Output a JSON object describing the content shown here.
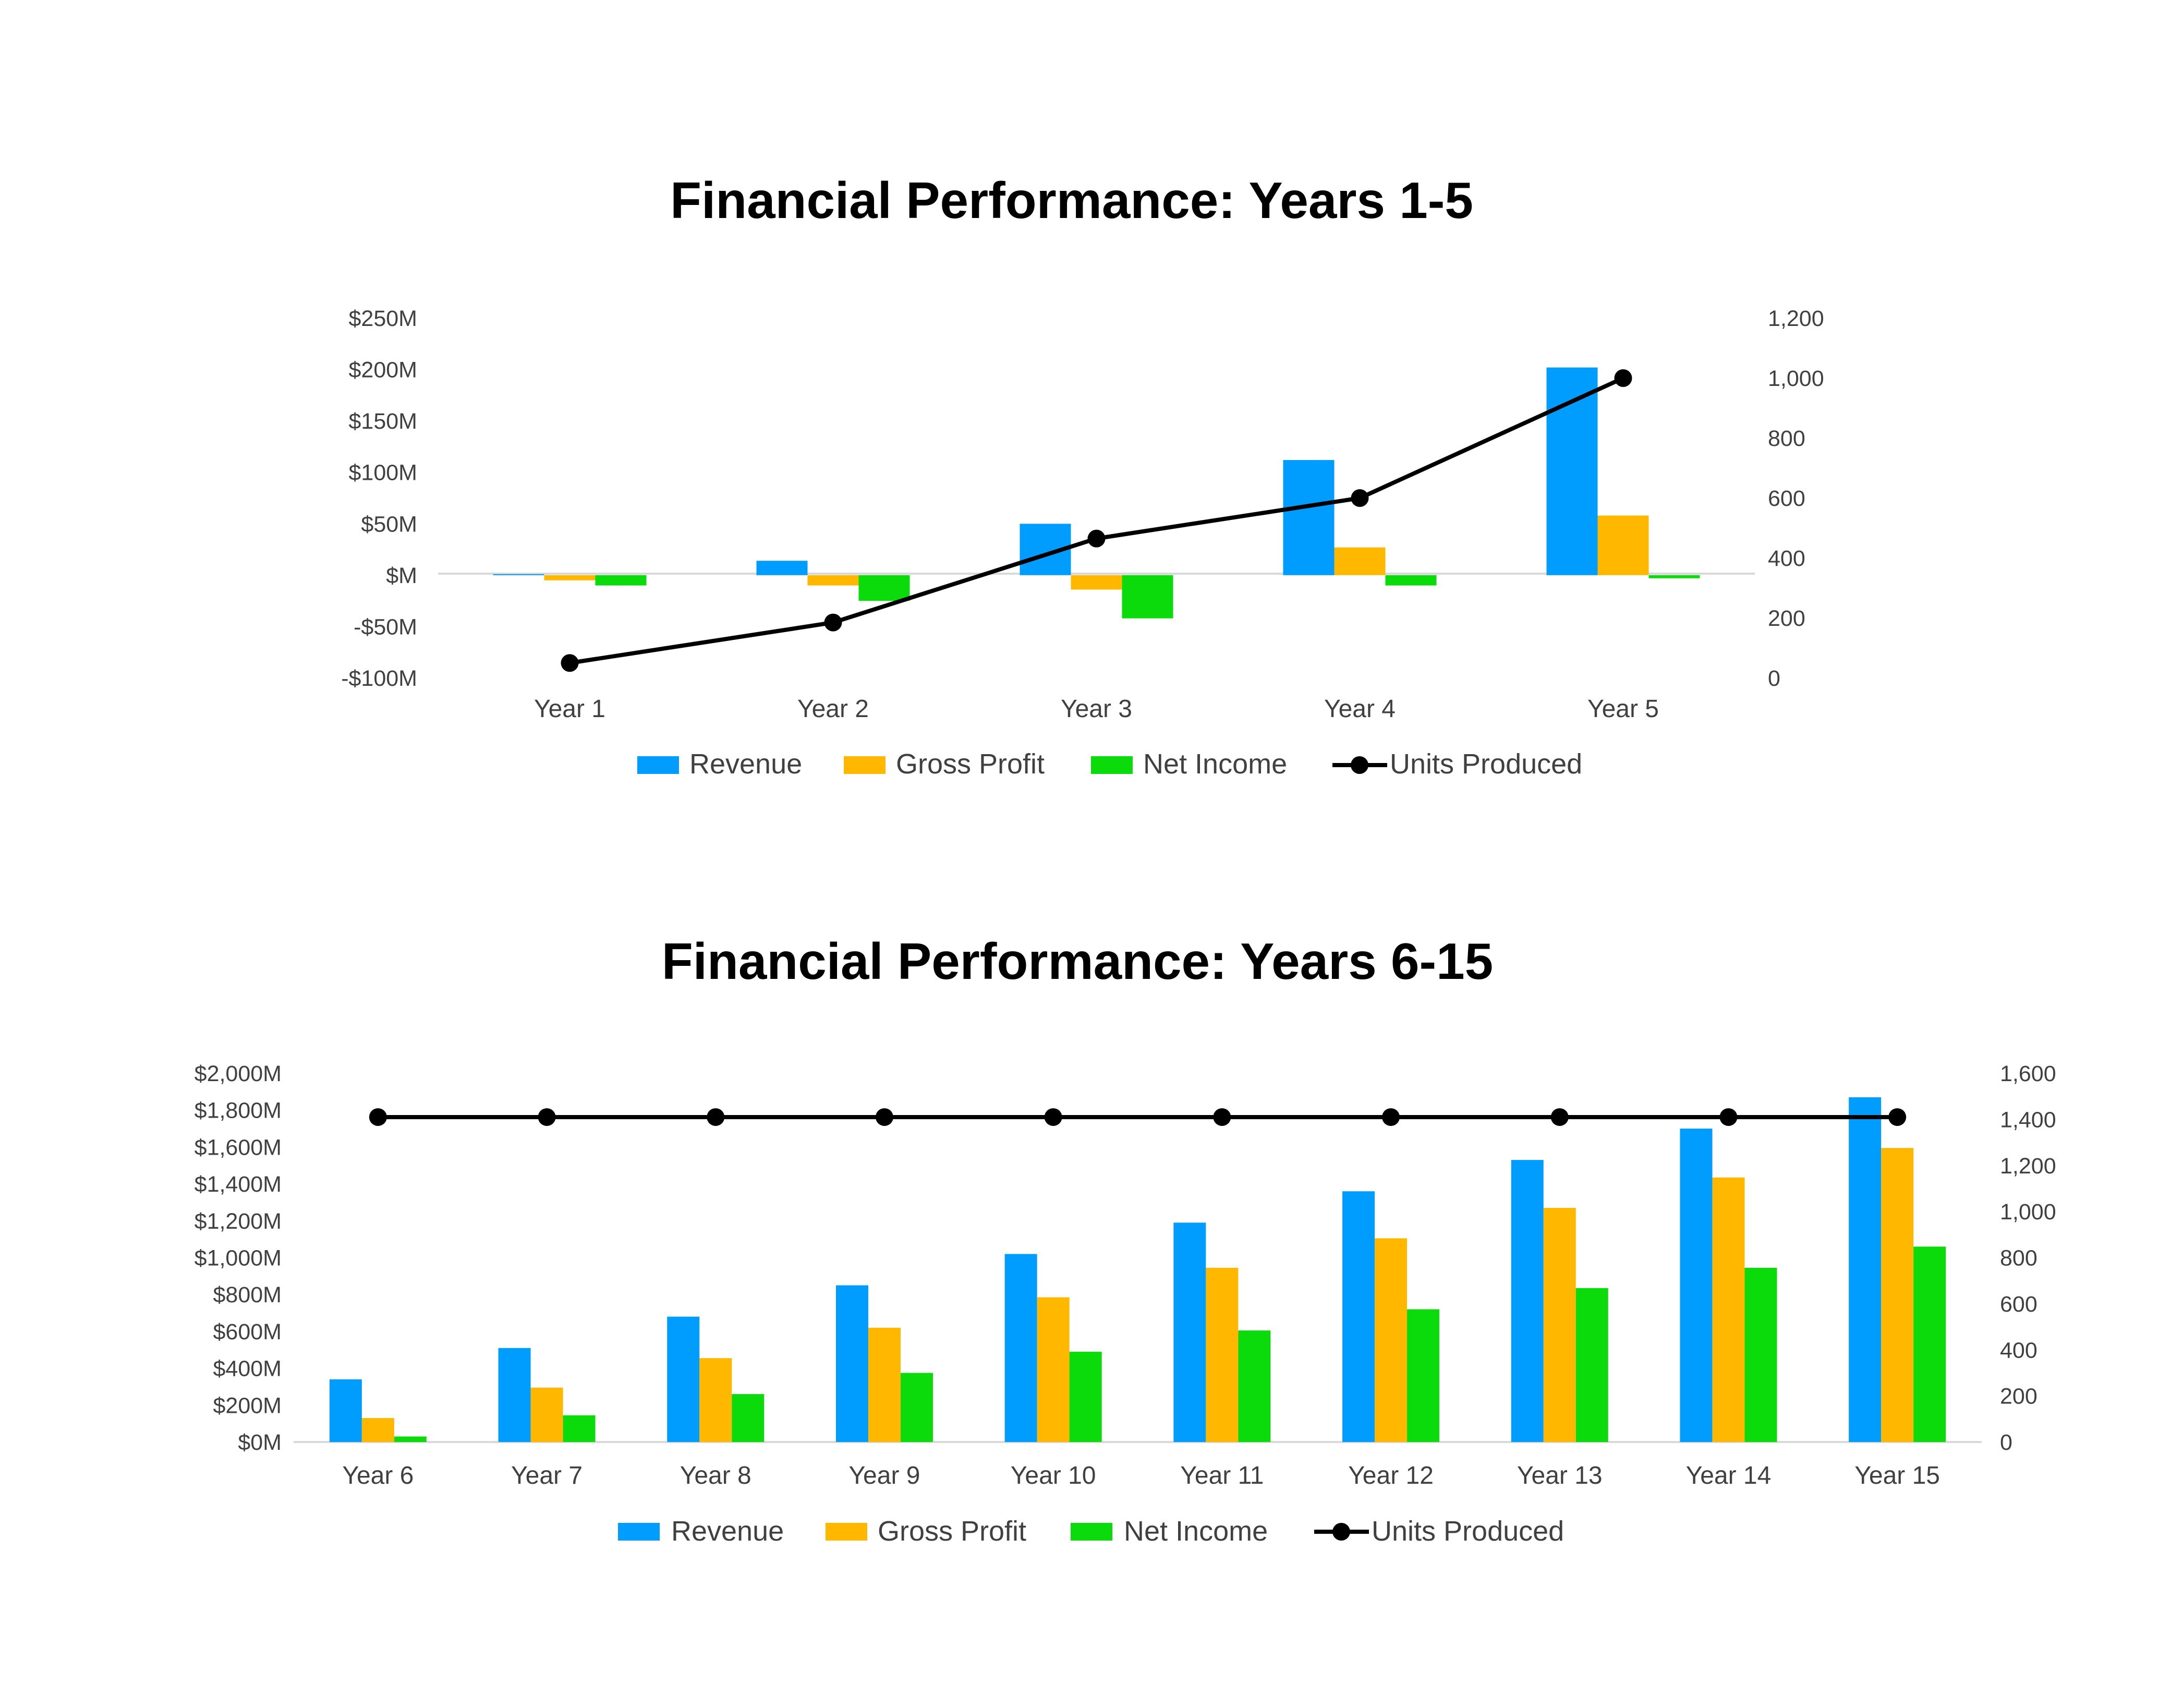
{
  "colors": {
    "revenue": "#009DFF",
    "gross_profit": "#FFB700",
    "net_income": "#0BDB0B",
    "units": "#000000",
    "axis_text": "#404040",
    "baseline": "#D9D9D9"
  },
  "chart_data": [
    {
      "type": "bar",
      "title": "Financial Performance: Years 1-5",
      "categories": [
        "Year 1",
        "Year 2",
        "Year 3",
        "Year 4",
        "Year 5"
      ],
      "series": [
        {
          "name": "Revenue",
          "type": "bar",
          "axis": "left",
          "values": [
            1,
            14,
            50,
            112,
            202
          ]
        },
        {
          "name": "Gross Profit",
          "type": "bar",
          "axis": "left",
          "values": [
            -5,
            -10,
            -14,
            27,
            58
          ]
        },
        {
          "name": "Net Income",
          "type": "bar",
          "axis": "left",
          "values": [
            -10,
            -25,
            -42,
            -10,
            -3
          ]
        },
        {
          "name": "Units Produced",
          "type": "line",
          "axis": "right",
          "values": [
            50,
            185,
            465,
            600,
            1000
          ]
        }
      ],
      "ylim": [
        -100,
        250
      ],
      "y_ticks": [
        250,
        200,
        150,
        100,
        50,
        0,
        -50,
        -100
      ],
      "y_tick_labels": [
        "$250M",
        "$200M",
        "$150M",
        "$100M",
        "$50M",
        "$M",
        "-$50M",
        "-$100M"
      ],
      "y2lim": [
        0,
        1200
      ],
      "y2_ticks": [
        1200,
        1000,
        800,
        600,
        400,
        200,
        0
      ],
      "y2_tick_labels": [
        "1,200",
        "1,000",
        "800",
        "600",
        "400",
        "200",
        "0"
      ],
      "grid": false,
      "legend": "bottom"
    },
    {
      "type": "bar",
      "title": "Financial Performance: Years 6-15",
      "categories": [
        "Year 6",
        "Year 7",
        "Year 8",
        "Year 9",
        "Year 10",
        "Year 11",
        "Year 12",
        "Year 13",
        "Year 14",
        "Year 15"
      ],
      "series": [
        {
          "name": "Revenue",
          "type": "bar",
          "axis": "left",
          "values": [
            340,
            510,
            680,
            850,
            1020,
            1190,
            1360,
            1530,
            1700,
            1870
          ]
        },
        {
          "name": "Gross Profit",
          "type": "bar",
          "axis": "left",
          "values": [
            130,
            295,
            455,
            620,
            785,
            945,
            1105,
            1270,
            1435,
            1595
          ]
        },
        {
          "name": "Net Income",
          "type": "bar",
          "axis": "left",
          "values": [
            30,
            145,
            260,
            375,
            490,
            605,
            720,
            835,
            945,
            1060
          ]
        },
        {
          "name": "Units Produced",
          "type": "line",
          "axis": "right",
          "values": [
            1410,
            1410,
            1410,
            1410,
            1410,
            1410,
            1410,
            1410,
            1410,
            1410
          ]
        }
      ],
      "ylim": [
        0,
        2000
      ],
      "y_ticks": [
        2000,
        1800,
        1600,
        1400,
        1200,
        1000,
        800,
        600,
        400,
        200,
        0
      ],
      "y_tick_labels": [
        "$2,000M",
        "$1,800M",
        "$1,600M",
        "$1,400M",
        "$1,200M",
        "$1,000M",
        "$800M",
        "$600M",
        "$400M",
        "$200M",
        "$0M"
      ],
      "y2lim": [
        0,
        1600
      ],
      "y2_ticks": [
        1600,
        1400,
        1200,
        1000,
        800,
        600,
        400,
        200,
        0
      ],
      "y2_tick_labels": [
        "1,600",
        "1,400",
        "1,200",
        "1,000",
        "800",
        "600",
        "400",
        "200",
        "0"
      ],
      "grid": false,
      "legend": "bottom"
    }
  ]
}
